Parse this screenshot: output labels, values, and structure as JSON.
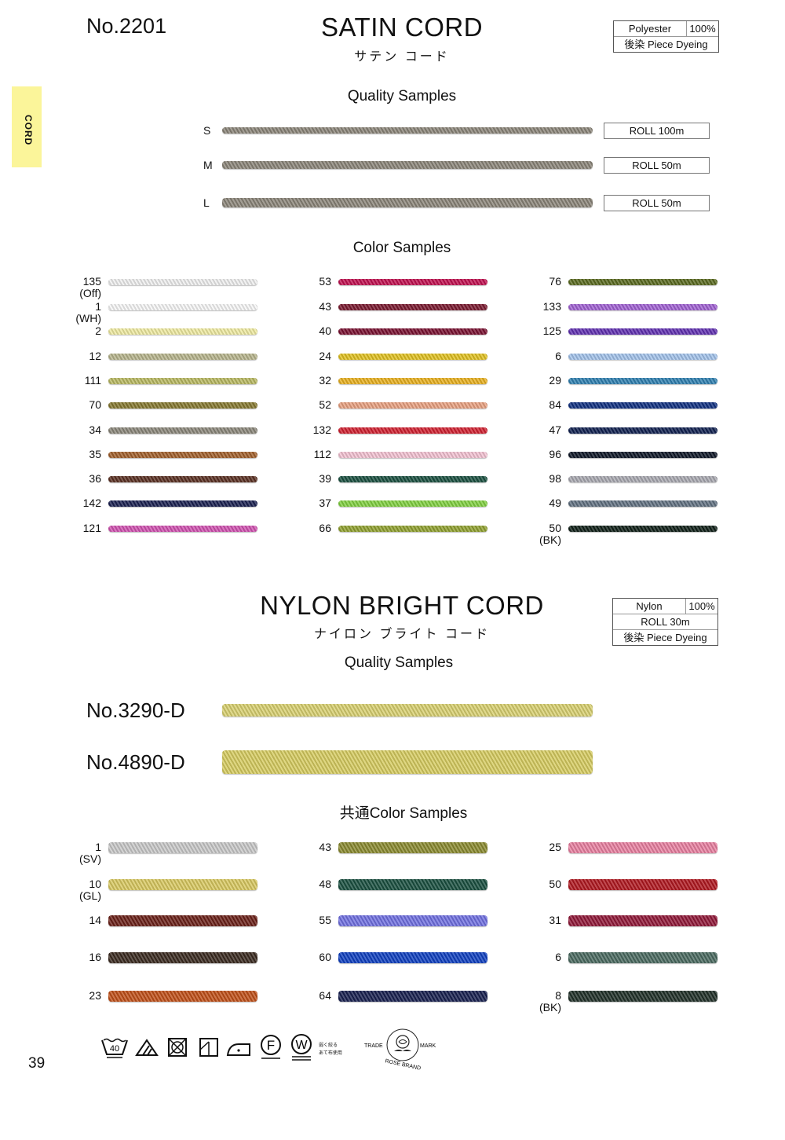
{
  "side_tab": "CORD",
  "page_number": "39",
  "satin": {
    "number": "No.2201",
    "title": "SATIN CORD",
    "subtitle": "サテン コード",
    "spec": {
      "material": "Polyester",
      "percent": "100%",
      "dyeing": "後染  Piece Dyeing"
    },
    "quality_heading": "Quality Samples",
    "quality": [
      {
        "size": "S",
        "roll": "ROLL 100m"
      },
      {
        "size": "M",
        "roll": "ROLL 50m"
      },
      {
        "size": "L",
        "roll": "ROLL 50m"
      }
    ],
    "quality_color": "#8a8478",
    "color_heading": "Color Samples",
    "columns": [
      [
        {
          "code": "135",
          "note": "(Off)",
          "color": "#eeeeee"
        },
        {
          "code": "1",
          "note": "(WH)",
          "color": "#f6f6f6"
        },
        {
          "code": "2",
          "color": "#efeaa0"
        },
        {
          "code": "12",
          "color": "#b6b48c"
        },
        {
          "code": "111",
          "color": "#b8b862"
        },
        {
          "code": "70",
          "color": "#857830"
        },
        {
          "code": "34",
          "color": "#8a867a"
        },
        {
          "code": "35",
          "color": "#a2602c"
        },
        {
          "code": "36",
          "color": "#5a3022"
        },
        {
          "code": "142",
          "color": "#1a2050"
        },
        {
          "code": "121",
          "color": "#d052b0"
        }
      ],
      [
        {
          "code": "53",
          "color": "#c01050"
        },
        {
          "code": "43",
          "color": "#7a1a30"
        },
        {
          "code": "40",
          "color": "#781030"
        },
        {
          "code": "24",
          "color": "#e0c020"
        },
        {
          "code": "32",
          "color": "#e8b020"
        },
        {
          "code": "52",
          "color": "#e8a080"
        },
        {
          "code": "132",
          "color": "#d02030"
        },
        {
          "code": "112",
          "color": "#f2c2d2"
        },
        {
          "code": "39",
          "color": "#1a5040"
        },
        {
          "code": "37",
          "color": "#80d040"
        },
        {
          "code": "66",
          "color": "#90a030"
        }
      ],
      [
        {
          "code": "76",
          "color": "#5a6a20"
        },
        {
          "code": "133",
          "color": "#a062d2"
        },
        {
          "code": "125",
          "color": "#6030b0"
        },
        {
          "code": "6",
          "color": "#a2c2ea"
        },
        {
          "code": "29",
          "color": "#3080b0"
        },
        {
          "code": "84",
          "color": "#103080"
        },
        {
          "code": "47",
          "color": "#102050"
        },
        {
          "code": "96",
          "color": "#101828"
        },
        {
          "code": "98",
          "color": "#a8a8b0"
        },
        {
          "code": "49",
          "color": "#607080"
        },
        {
          "code": "50",
          "note": "(BK)",
          "color": "#102018"
        }
      ]
    ]
  },
  "nylon": {
    "title": "NYLON BRIGHT CORD",
    "subtitle": "ナイロン ブライト コード",
    "spec": {
      "material": "Nylon",
      "percent": "100%",
      "roll": "ROLL 30m",
      "dyeing": "後染  Piece Dyeing"
    },
    "quality_heading": "Quality Samples",
    "quality": [
      {
        "name": "No.3290-D",
        "color": "#d8d070"
      },
      {
        "name": "No.4890-D",
        "color": "#d6cc60"
      }
    ],
    "color_heading": "共通Color Samples",
    "columns": [
      [
        {
          "code": "1",
          "note": "(SV)",
          "color": "#c8c8c8"
        },
        {
          "code": "10",
          "note": "(GL)",
          "color": "#d8c860"
        },
        {
          "code": "14",
          "color": "#6a2018"
        },
        {
          "code": "16",
          "color": "#3a2a20"
        },
        {
          "code": "23",
          "color": "#c05018"
        }
      ],
      [
        {
          "code": "43",
          "color": "#8a8a30"
        },
        {
          "code": "48",
          "color": "#1a5040"
        },
        {
          "code": "55",
          "color": "#7070e0"
        },
        {
          "code": "60",
          "color": "#1040c0"
        },
        {
          "code": "64",
          "color": "#182050"
        }
      ],
      [
        {
          "code": "25",
          "color": "#e880a0"
        },
        {
          "code": "50",
          "color": "#b01820"
        },
        {
          "code": "31",
          "color": "#901838"
        },
        {
          "code": "6",
          "color": "#4a6a60"
        },
        {
          "code": "8",
          "note": "(BK)",
          "color": "#203028"
        }
      ]
    ]
  },
  "care": {
    "wash_temp": "40",
    "dryclean_f": "F",
    "wet_w": "W",
    "note1": "弱く絞る",
    "note2": "あて布使用"
  },
  "logo": {
    "left": "TRADE",
    "right": "MARK",
    "bottom": "ROSE BRAND"
  }
}
